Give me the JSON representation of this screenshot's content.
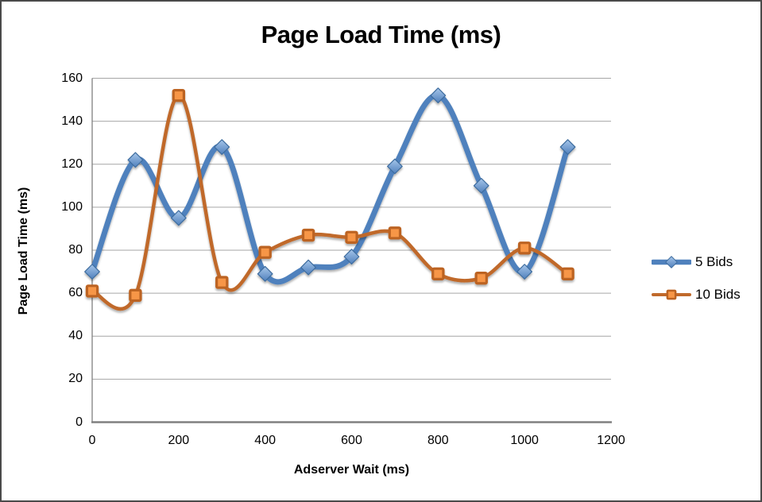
{
  "chart_data": {
    "type": "line",
    "title": "Page Load Time (ms)",
    "xlabel": "Adserver Wait (ms)",
    "ylabel": "Page Load Time (ms)",
    "x": [
      0,
      100,
      200,
      300,
      400,
      500,
      600,
      700,
      800,
      900,
      1000,
      1100
    ],
    "series": [
      {
        "name": "5 Bids",
        "values": [
          70,
          122,
          95,
          128,
          69,
          72,
          77,
          119,
          152,
          110,
          70,
          128
        ],
        "line_color": "#4F81BD",
        "line_width": 7,
        "marker": "diamond",
        "marker_fill_top": "#A6C6EA",
        "marker_fill_bottom": "#5080BC",
        "marker_stroke": "#3E6C9E"
      },
      {
        "name": "10 Bids",
        "values": [
          61,
          59,
          152,
          65,
          79,
          87,
          86,
          88,
          69,
          67,
          81,
          69
        ],
        "line_color": "#C0692B",
        "line_width": 4.5,
        "marker": "square",
        "marker_fill": "#F79646",
        "marker_stroke": "#BC6322"
      }
    ],
    "xlim": [
      0,
      1200
    ],
    "ylim": [
      0,
      160
    ],
    "x_ticks": [
      0,
      200,
      400,
      600,
      800,
      1000,
      1200
    ],
    "y_ticks": [
      0,
      20,
      40,
      60,
      80,
      100,
      120,
      140,
      160
    ],
    "gridlines": "horizontal",
    "grid_color": "#A6A6A6",
    "axis_color": "#7F7F7F",
    "x_axis_line_color": "#808080",
    "legend_position": "right",
    "smooth": true
  }
}
